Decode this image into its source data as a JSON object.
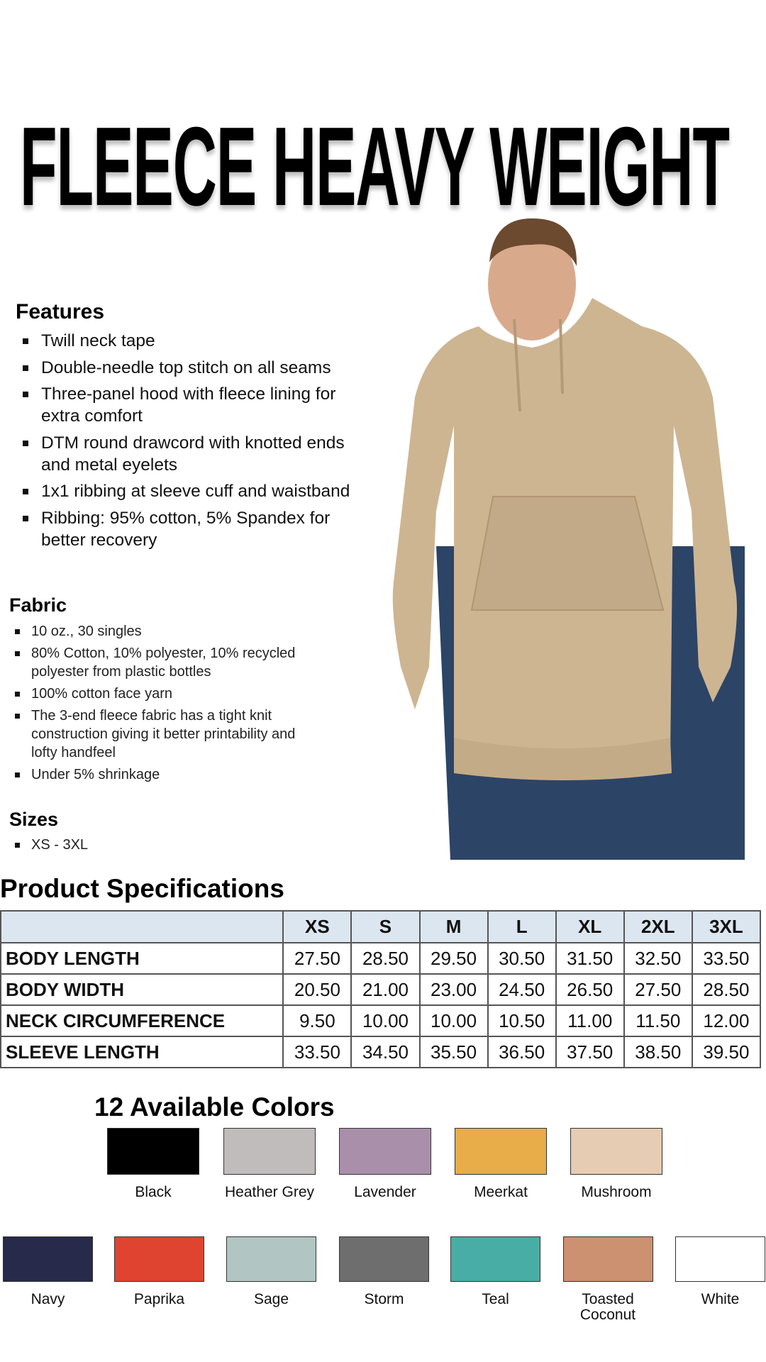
{
  "title": "FLEECE HEAVY WEIGHT",
  "features": {
    "heading": "Features",
    "items": [
      "Twill neck tape",
      "Double-needle top stitch on all seams",
      "Three-panel hood with fleece lining for extra comfort",
      "DTM round drawcord with knotted ends and metal eyelets",
      "1x1 ribbing at sleeve cuff and waistband",
      "Ribbing: 95% cotton, 5% Spandex for better recovery"
    ]
  },
  "fabric": {
    "heading": "Fabric",
    "items": [
      "10 oz., 30 singles",
      "80% Cotton, 10% polyester, 10% recycled polyester from plastic bottles",
      "100% cotton face yarn",
      "The 3-end fleece fabric has a tight knit construction giving it better printability and lofty handfeel",
      "Under 5% shrinkage"
    ]
  },
  "sizes": {
    "heading": "Sizes",
    "items": [
      "XS - 3XL"
    ]
  },
  "specs": {
    "heading": "Product Specifications",
    "columns": [
      "XS",
      "S",
      "M",
      "L",
      "XL",
      "2XL",
      "3XL"
    ],
    "rows": [
      {
        "label": "BODY LENGTH",
        "values": [
          "27.50",
          "28.50",
          "29.50",
          "30.50",
          "31.50",
          "32.50",
          "33.50"
        ]
      },
      {
        "label": "BODY WIDTH",
        "values": [
          "20.50",
          "21.00",
          "23.00",
          "24.50",
          "26.50",
          "27.50",
          "28.50"
        ]
      },
      {
        "label": "NECK CIRCUMFERENCE",
        "values": [
          "9.50",
          "10.00",
          "10.00",
          "10.50",
          "11.00",
          "11.50",
          "12.00"
        ]
      },
      {
        "label": "SLEEVE LENGTH",
        "values": [
          "33.50",
          "34.50",
          "35.50",
          "36.50",
          "37.50",
          "38.50",
          "39.50"
        ]
      }
    ]
  },
  "colors": {
    "heading": "12 Available Colors",
    "items": [
      {
        "name": "Black",
        "hex": "#000000"
      },
      {
        "name": "Heather Grey",
        "hex": "#bfbcbb"
      },
      {
        "name": "Lavender",
        "hex": "#aa8fab"
      },
      {
        "name": "Meerkat",
        "hex": "#e8ac48"
      },
      {
        "name": "Mushroom",
        "hex": "#e5ccb2"
      },
      {
        "name": "Navy",
        "hex": "#272a4a"
      },
      {
        "name": "Paprika",
        "hex": "#df4430"
      },
      {
        "name": "Sage",
        "hex": "#b1c5c2"
      },
      {
        "name": "Storm",
        "hex": "#6e6e6e"
      },
      {
        "name": "Teal",
        "hex": "#48aea5"
      },
      {
        "name": "Toasted Coconut",
        "hex": "#cc9171"
      },
      {
        "name": "White",
        "hex": "#ffffff"
      }
    ]
  },
  "hoodie_color": "#cdb592"
}
